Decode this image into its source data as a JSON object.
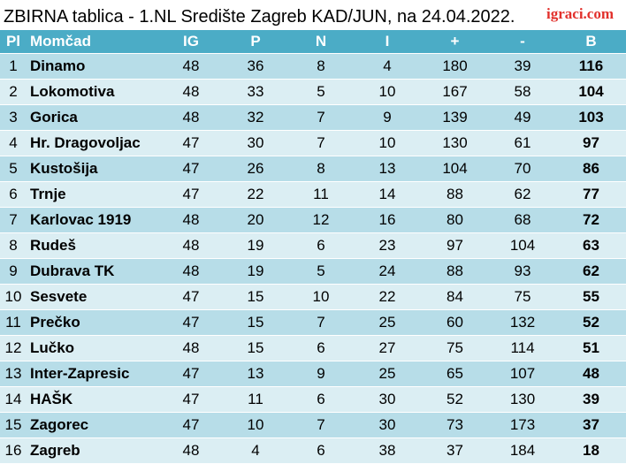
{
  "title": "ZBIRNA tablica - 1.NL Središte Zagreb KAD/JUN, na 24.04.2022.",
  "logo": "igraci.com",
  "headers": [
    "Pl",
    "Momčad",
    "IG",
    "P",
    "N",
    "I",
    "+",
    "-",
    "B"
  ],
  "rows": [
    {
      "pl": "1",
      "team": "Dinamo",
      "ig": "48",
      "p": "36",
      "n": "8",
      "i": "4",
      "plus": "180",
      "minus": "39",
      "b": "116"
    },
    {
      "pl": "2",
      "team": "Lokomotiva",
      "ig": "48",
      "p": "33",
      "n": "5",
      "i": "10",
      "plus": "167",
      "minus": "58",
      "b": "104"
    },
    {
      "pl": "3",
      "team": "Gorica",
      "ig": "48",
      "p": "32",
      "n": "7",
      "i": "9",
      "plus": "139",
      "minus": "49",
      "b": "103"
    },
    {
      "pl": "4",
      "team": "Hr. Dragovoljac",
      "ig": "47",
      "p": "30",
      "n": "7",
      "i": "10",
      "plus": "130",
      "minus": "61",
      "b": "97"
    },
    {
      "pl": "5",
      "team": "Kustošija",
      "ig": "47",
      "p": "26",
      "n": "8",
      "i": "13",
      "plus": "104",
      "minus": "70",
      "b": "86"
    },
    {
      "pl": "6",
      "team": "Trnje",
      "ig": "47",
      "p": "22",
      "n": "11",
      "i": "14",
      "plus": "88",
      "minus": "62",
      "b": "77"
    },
    {
      "pl": "7",
      "team": "Karlovac 1919",
      "ig": "48",
      "p": "20",
      "n": "12",
      "i": "16",
      "plus": "80",
      "minus": "68",
      "b": "72"
    },
    {
      "pl": "8",
      "team": "Rudeš",
      "ig": "48",
      "p": "19",
      "n": "6",
      "i": "23",
      "plus": "97",
      "minus": "104",
      "b": "63"
    },
    {
      "pl": "9",
      "team": "Dubrava TK",
      "ig": "48",
      "p": "19",
      "n": "5",
      "i": "24",
      "plus": "88",
      "minus": "93",
      "b": "62"
    },
    {
      "pl": "10",
      "team": "Sesvete",
      "ig": "47",
      "p": "15",
      "n": "10",
      "i": "22",
      "plus": "84",
      "minus": "75",
      "b": "55"
    },
    {
      "pl": "11",
      "team": "Prečko",
      "ig": "47",
      "p": "15",
      "n": "7",
      "i": "25",
      "plus": "60",
      "minus": "132",
      "b": "52"
    },
    {
      "pl": "12",
      "team": "Lučko",
      "ig": "48",
      "p": "15",
      "n": "6",
      "i": "27",
      "plus": "75",
      "minus": "114",
      "b": "51"
    },
    {
      "pl": "13",
      "team": "Inter-Zapresic",
      "ig": "47",
      "p": "13",
      "n": "9",
      "i": "25",
      "plus": "65",
      "minus": "107",
      "b": "48"
    },
    {
      "pl": "14",
      "team": "HAŠK",
      "ig": "47",
      "p": "11",
      "n": "6",
      "i": "30",
      "plus": "52",
      "minus": "130",
      "b": "39"
    },
    {
      "pl": "15",
      "team": "Zagorec",
      "ig": "47",
      "p": "10",
      "n": "7",
      "i": "30",
      "plus": "73",
      "minus": "173",
      "b": "37"
    },
    {
      "pl": "16",
      "team": "Zagreb",
      "ig": "48",
      "p": "4",
      "n": "6",
      "i": "38",
      "plus": "37",
      "minus": "184",
      "b": "18"
    }
  ],
  "colors": {
    "header_bg": "#4bacc6",
    "row_odd": "#b7dde8",
    "row_even": "#dbeef3",
    "logo": "#e2302b"
  }
}
